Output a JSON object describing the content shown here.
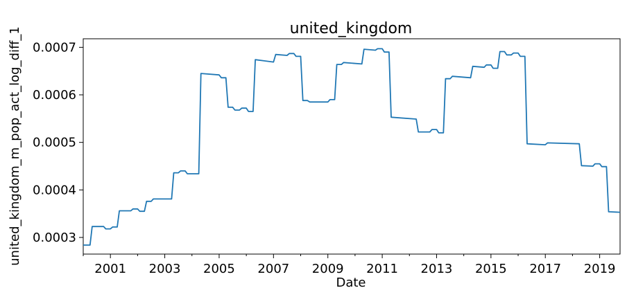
{
  "chart_data": {
    "type": "line",
    "title": "united_kingdom",
    "xlabel": "Date",
    "ylabel": "united_kingdom_m_pop_act_log_diff_1",
    "xlim": [
      2000.0,
      2019.75
    ],
    "ylim": [
      0.000265,
      0.000718
    ],
    "x_ticks": [
      2001,
      2003,
      2005,
      2007,
      2009,
      2011,
      2013,
      2015,
      2017,
      2019
    ],
    "x_tick_labels": [
      "2001",
      "2003",
      "2005",
      "2007",
      "2009",
      "2011",
      "2013",
      "2015",
      "2017",
      "2019"
    ],
    "y_ticks": [
      0.0003,
      0.0004,
      0.0005,
      0.0006,
      0.0007
    ],
    "y_tick_labels": [
      "0.0003",
      "0.0004",
      "0.0005",
      "0.0006",
      "0.0007"
    ],
    "grid": false,
    "legend": "none",
    "colors": {
      "line": "#1f77b4"
    },
    "series": [
      {
        "x": [
          2000.0,
          2000.25,
          2000.33,
          2000.75,
          2000.83,
          2001.0,
          2001.08,
          2001.25,
          2001.33,
          2001.75,
          2001.83,
          2002.0,
          2002.08,
          2002.25,
          2002.33,
          2002.5,
          2002.58,
          2003.25,
          2003.33,
          2003.5,
          2003.58,
          2003.75,
          2003.83,
          2004.25,
          2004.33,
          2005.0,
          2005.08,
          2005.25,
          2005.33,
          2005.5,
          2005.58,
          2005.75,
          2005.83,
          2006.0,
          2006.08,
          2006.25,
          2006.33,
          2007.0,
          2007.08,
          2007.5,
          2007.58,
          2007.75,
          2007.83,
          2008.0,
          2008.08,
          2008.25,
          2008.33,
          2009.0,
          2009.08,
          2009.25,
          2009.33,
          2009.5,
          2009.58,
          2010.25,
          2010.33,
          2010.75,
          2010.83,
          2011.0,
          2011.08,
          2011.25,
          2011.33,
          2012.25,
          2012.33,
          2012.75,
          2012.83,
          2013.0,
          2013.08,
          2013.25,
          2013.33,
          2013.5,
          2013.58,
          2014.25,
          2014.33,
          2014.75,
          2014.83,
          2015.0,
          2015.08,
          2015.25,
          2015.33,
          2015.5,
          2015.58,
          2015.75,
          2015.83,
          2016.0,
          2016.08,
          2016.25,
          2016.33,
          2017.0,
          2017.08,
          2018.25,
          2018.33,
          2018.75,
          2018.83,
          2019.0,
          2019.08,
          2019.25,
          2019.33,
          2019.75
        ],
        "y": [
          0.000284,
          0.000284,
          0.000323,
          0.000323,
          0.000318,
          0.000318,
          0.000322,
          0.000322,
          0.000356,
          0.000356,
          0.00036,
          0.00036,
          0.000355,
          0.000355,
          0.000376,
          0.000376,
          0.000381,
          0.000381,
          0.000436,
          0.000436,
          0.00044,
          0.00044,
          0.000434,
          0.000434,
          0.000645,
          0.000642,
          0.000636,
          0.000636,
          0.000574,
          0.000574,
          0.000568,
          0.000568,
          0.000572,
          0.000572,
          0.000565,
          0.000565,
          0.000674,
          0.000669,
          0.000685,
          0.000683,
          0.000687,
          0.000687,
          0.000681,
          0.000681,
          0.000588,
          0.000588,
          0.000585,
          0.000585,
          0.00059,
          0.00059,
          0.000664,
          0.000664,
          0.000668,
          0.000665,
          0.000696,
          0.000694,
          0.000697,
          0.000697,
          0.00069,
          0.00069,
          0.000553,
          0.000549,
          0.000522,
          0.000522,
          0.000527,
          0.000527,
          0.00052,
          0.00052,
          0.000634,
          0.000634,
          0.000639,
          0.000636,
          0.00066,
          0.000658,
          0.000663,
          0.000663,
          0.000656,
          0.000656,
          0.000691,
          0.000691,
          0.000684,
          0.000684,
          0.000688,
          0.000688,
          0.000681,
          0.000681,
          0.000497,
          0.000495,
          0.000499,
          0.000497,
          0.000451,
          0.00045,
          0.000455,
          0.000455,
          0.000449,
          0.000449,
          0.000354,
          0.000353
        ]
      }
    ]
  }
}
